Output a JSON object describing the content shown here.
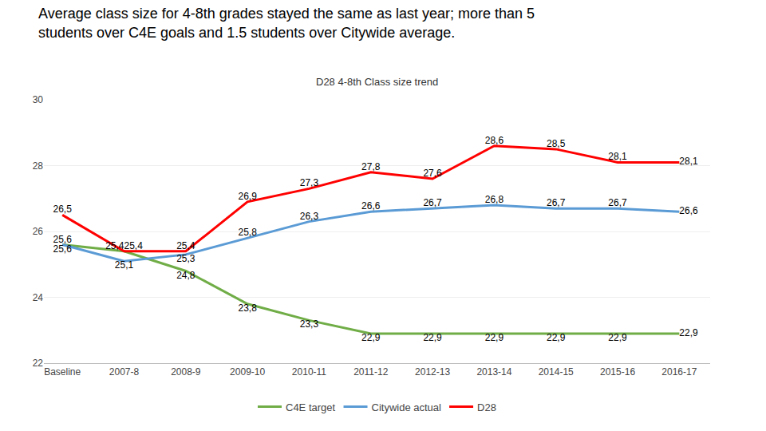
{
  "chart_data": {
    "type": "line",
    "title": "Average class size for 4-8th grades stayed the same as last year; more than 5 students over C4E goals and 1.5 students over Citywide average.",
    "subtitle": "D28 4-8th Class size trend",
    "categories": [
      "Baseline",
      "2007-8",
      "2008-9",
      "2009-10",
      "2010-11",
      "2011-12",
      "2012-13",
      "2013-14",
      "2014-15",
      "2015-16",
      "2016-17"
    ],
    "series": [
      {
        "name": "C4E target",
        "color": "#70ad47",
        "values": [
          25.6,
          25.4,
          24.8,
          23.8,
          23.3,
          22.9,
          22.9,
          22.9,
          22.9,
          22.9,
          22.9
        ],
        "value_labels": [
          "25,6",
          "25,4",
          "24,8",
          "23,8",
          "23,3",
          "22,9",
          "22,9",
          "22,9",
          "22,9",
          "22,9",
          "22,9"
        ]
      },
      {
        "name": "Citywide actual",
        "color": "#5b9bd5",
        "values": [
          25.6,
          25.1,
          25.3,
          25.8,
          26.3,
          26.6,
          26.7,
          26.8,
          26.7,
          26.7,
          26.6
        ],
        "value_labels": [
          "25,6",
          "25,1",
          "25,3",
          "25,8",
          "26,3",
          "26,6",
          "26,7",
          "26,8",
          "26,7",
          "26,7",
          "26,6"
        ]
      },
      {
        "name": "D28",
        "color": "#ff0000",
        "values": [
          26.5,
          25.4,
          25.4,
          26.9,
          27.3,
          27.8,
          27.6,
          28.6,
          28.5,
          28.1,
          28.1
        ],
        "value_labels": [
          "26,5",
          "25,4",
          "25,4",
          "26,9",
          "27,3",
          "27,8",
          "27,6",
          "28,6",
          "28,5",
          "28,1",
          "28,1"
        ]
      }
    ],
    "ylim": [
      22,
      30
    ],
    "yticks": [
      22,
      24,
      26,
      28,
      30
    ],
    "grid": true,
    "legend": "bottom",
    "data_labels": true
  }
}
